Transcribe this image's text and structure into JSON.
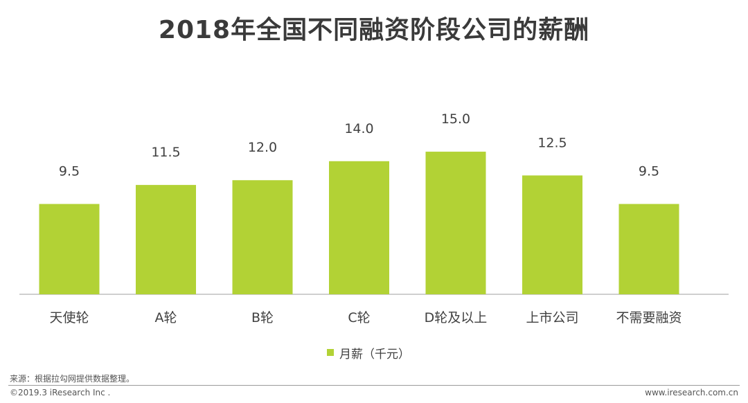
{
  "title": "2018年全国不同融资阶段公司的薪酬",
  "colors": {
    "bar": "#b2d235",
    "axis": "#bfbfbf",
    "label": "#404040"
  },
  "chart_data": {
    "type": "bar",
    "categories": [
      "天使轮",
      "A轮",
      "B轮",
      "C轮",
      "D轮及以上",
      "上市公司",
      "不需要融资"
    ],
    "series": [
      {
        "name": "月薪（千元）",
        "values": [
          9.5,
          11.5,
          12.0,
          14.0,
          15.0,
          12.5,
          9.5
        ]
      }
    ],
    "value_labels": [
      "9.5",
      "11.5",
      "12.0",
      "14.0",
      "15.0",
      "12.5",
      "9.5"
    ],
    "ylim": [
      0,
      15.0
    ],
    "grid": false,
    "legend": "bottom-center"
  },
  "legend": {
    "label": "月薪（千元）"
  },
  "source": "来源：根据拉勾网提供数据整理。",
  "copyright": "©2019.3 iResearch Inc .",
  "website": "www.iresearch.com.cn"
}
